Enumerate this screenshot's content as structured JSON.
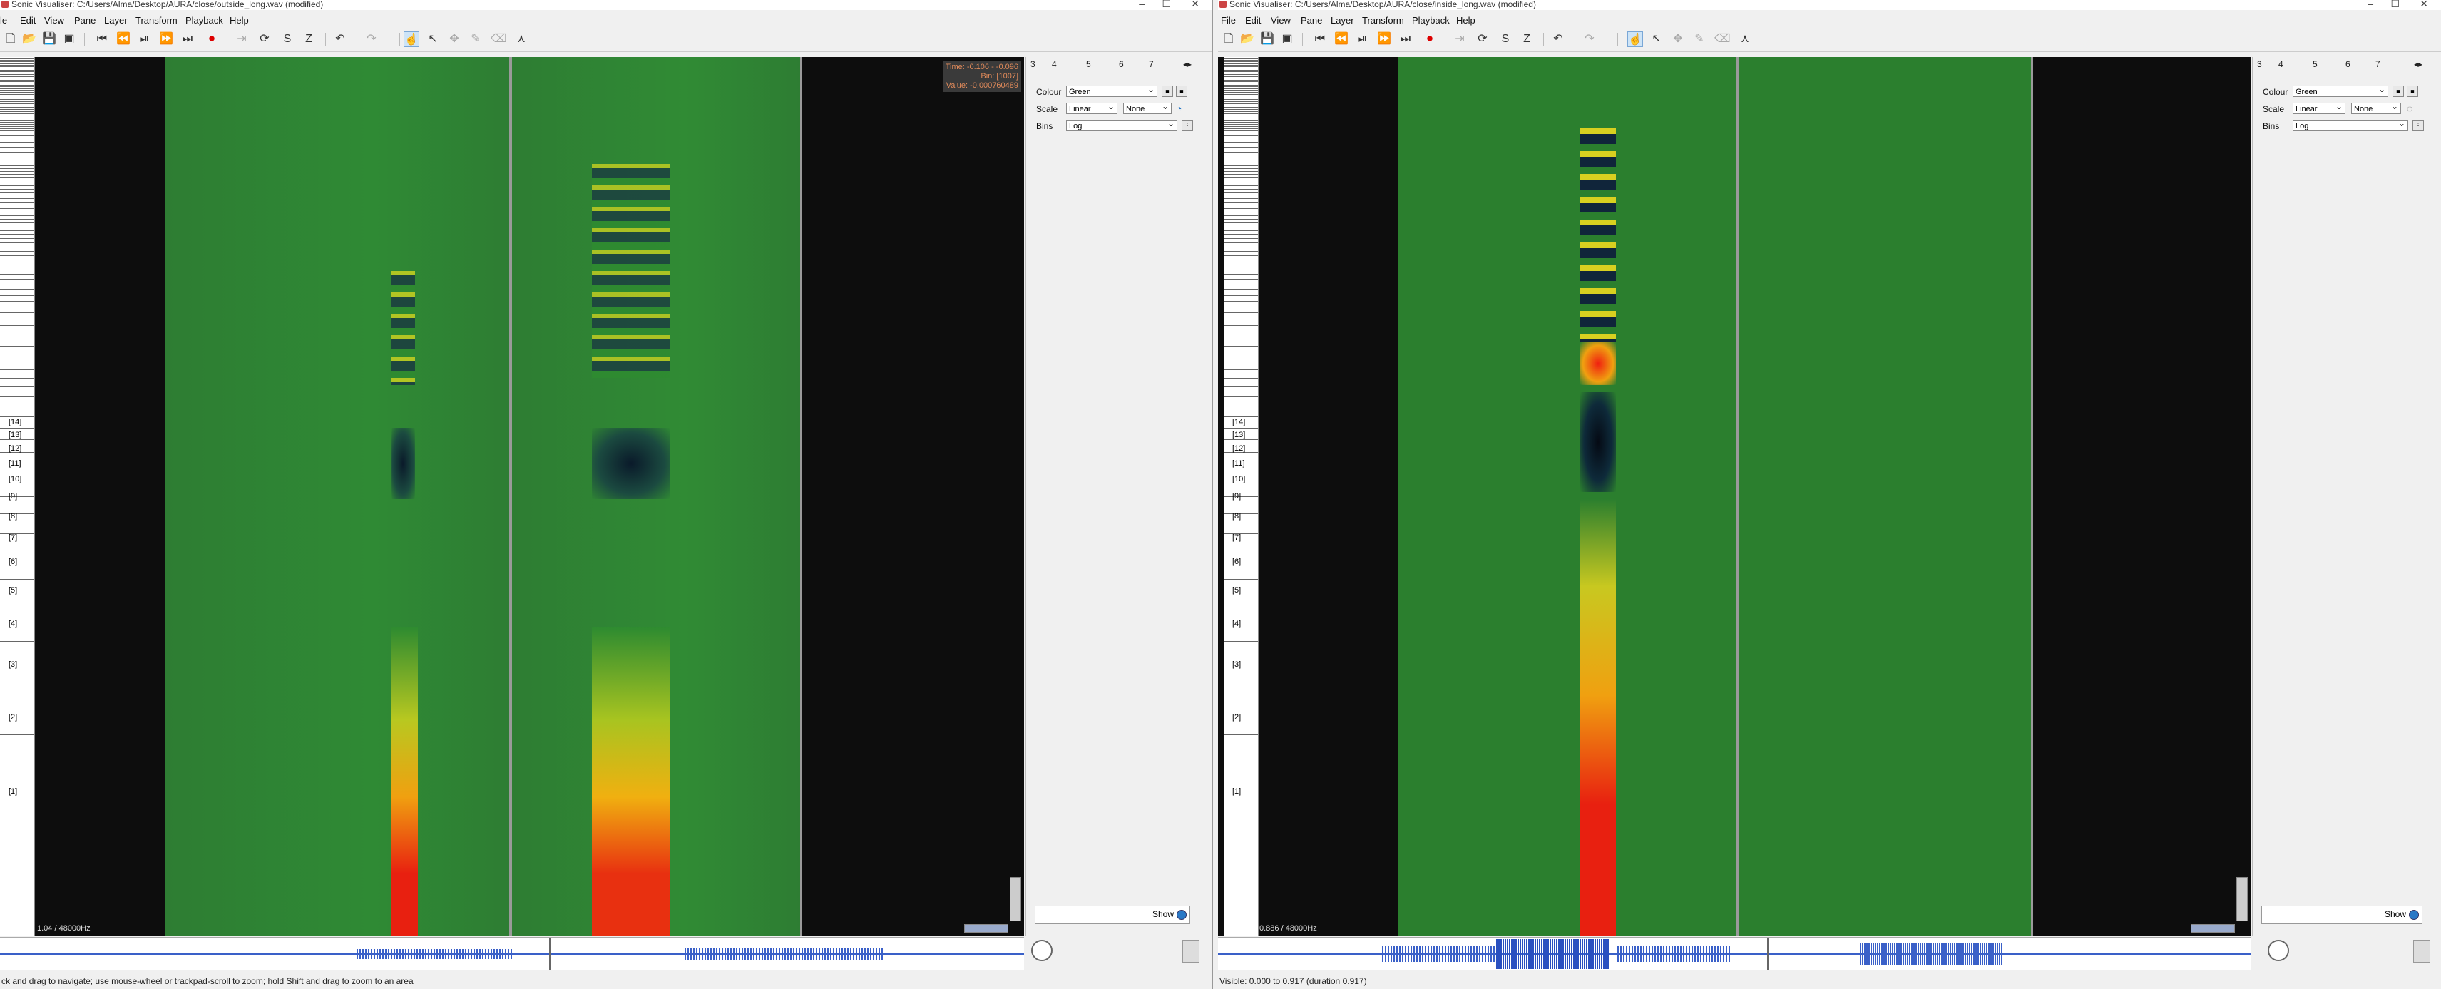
{
  "left": {
    "title": "Sonic Visualiser: C:/Users/Alma/Desktop/AURA/close/outside_long.wav (modified)",
    "menu": [
      "le",
      "Edit",
      "View",
      "Pane",
      "Layer",
      "Transform",
      "Playback",
      "Help"
    ],
    "readout": {
      "time": "Time: -0.106 - -0.096",
      "bin": "Bin: [1007]",
      "value": "Value: -0.000760489"
    },
    "freq_label": "1.04 / 48000Hz",
    "status": "ck and drag to navigate; use mouse-wheel or trackpad-scroll to zoom; hold Shift and drag to zoom to an area"
  },
  "right": {
    "title": "Sonic Visualiser: C:/Users/Alma/Desktop/AURA/close/inside_long.wav (modified)",
    "menu": [
      "File",
      "Edit",
      "View",
      "Pane",
      "Layer",
      "Transform",
      "Playback",
      "Help"
    ],
    "freq_label": "0.886 / 48000Hz",
    "status": "Visible: 0.000 to 0.917 (duration 0.917)"
  },
  "tabs": [
    "3",
    "4",
    "5",
    "6",
    "7"
  ],
  "params": {
    "colour_label": "Colour",
    "colour_value": "Green",
    "scale_label": "Scale",
    "scale_value": "Linear",
    "scale_value2": "None",
    "bins_label": "Bins",
    "bins_value": "Log"
  },
  "show_label": "Show",
  "scale_labels": [
    "[1]",
    "[2]",
    "[3]",
    "[4]",
    "[5]",
    "[6]",
    "[7]",
    "[8]",
    "[9]",
    "[10]",
    "[11]",
    "[12]",
    "[13]",
    "[14]"
  ],
  "icons": {
    "toolbar": [
      "new-file-icon",
      "open-icon",
      "save-icon",
      "save-session-icon",
      "rewind-start-icon",
      "rewind-icon",
      "play-pause-icon",
      "fast-forward-icon",
      "ffwd-end-icon",
      "record-icon",
      "play-selection-icon",
      "loop-icon",
      "solo-icon",
      "normalize-icon",
      "undo-icon",
      "redo-icon",
      "navigate-icon",
      "select-icon",
      "move-icon",
      "draw-icon",
      "erase-icon",
      "measure-icon"
    ]
  },
  "colors": {
    "spectrum_bg": "#2e8b30",
    "hot": "#e82010",
    "accent": "#2a78c6"
  }
}
